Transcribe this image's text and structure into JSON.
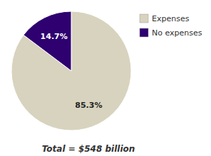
{
  "chart_data": {
    "type": "pie",
    "categories": [
      "Expenses",
      "No expenses"
    ],
    "values": [
      85.3,
      14.7
    ],
    "value_labels": [
      "85.3%",
      "14.7%"
    ],
    "colors": [
      "#D8D3BE",
      "#2E0070"
    ],
    "data_labels": true,
    "legend": "right",
    "annotations": [
      "Total = $548 billion"
    ]
  }
}
